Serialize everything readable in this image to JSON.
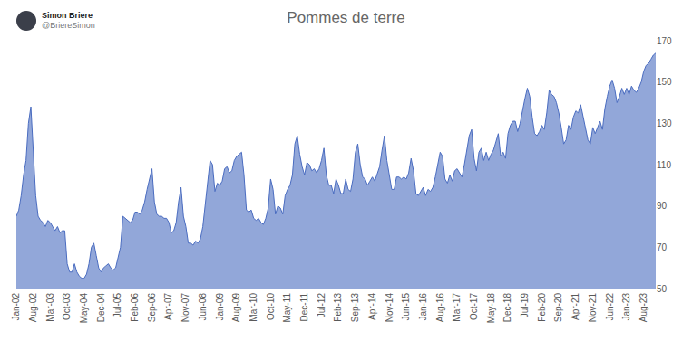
{
  "header": {
    "name": "Simon Briere",
    "handle": "@BriereSimon"
  },
  "chart_data": {
    "type": "area",
    "title": "Pommes de terre",
    "color": "#4a6cc0",
    "grid": false,
    "ylim": [
      50,
      170
    ],
    "yticks": [
      50,
      70,
      90,
      110,
      130,
      150,
      170
    ],
    "categories": [
      "Jan-02",
      null,
      null,
      null,
      null,
      null,
      null,
      "Aug-02",
      null,
      null,
      null,
      null,
      null,
      null,
      "Mar-03",
      null,
      null,
      null,
      null,
      null,
      null,
      "Oct-03",
      null,
      null,
      null,
      null,
      null,
      null,
      "May-04",
      null,
      null,
      null,
      null,
      null,
      null,
      "Dec-04",
      null,
      null,
      null,
      null,
      null,
      null,
      "Jul-05",
      null,
      null,
      null,
      null,
      null,
      null,
      "Feb-06",
      null,
      null,
      null,
      null,
      null,
      null,
      "Sep-06",
      null,
      null,
      null,
      null,
      null,
      null,
      "Apr-07",
      null,
      null,
      null,
      null,
      null,
      null,
      "Nov-07",
      null,
      null,
      null,
      null,
      null,
      null,
      "Jun-08",
      null,
      null,
      null,
      null,
      null,
      null,
      "Jan-09",
      null,
      null,
      null,
      null,
      null,
      null,
      "Aug-09",
      null,
      null,
      null,
      null,
      null,
      null,
      "Mar-10",
      null,
      null,
      null,
      null,
      null,
      null,
      "Oct-10",
      null,
      null,
      null,
      null,
      null,
      null,
      "May-11",
      null,
      null,
      null,
      null,
      null,
      null,
      "Dec-11",
      null,
      null,
      null,
      null,
      null,
      null,
      "Jul-12",
      null,
      null,
      null,
      null,
      null,
      null,
      "Feb-13",
      null,
      null,
      null,
      null,
      null,
      null,
      "Sep-13",
      null,
      null,
      null,
      null,
      null,
      null,
      "Apr-14",
      null,
      null,
      null,
      null,
      null,
      null,
      "Nov-14",
      null,
      null,
      null,
      null,
      null,
      null,
      "Jun-15",
      null,
      null,
      null,
      null,
      null,
      null,
      "Jan-16",
      null,
      null,
      null,
      null,
      null,
      null,
      "Aug-16",
      null,
      null,
      null,
      null,
      null,
      null,
      "Mar-17",
      null,
      null,
      null,
      null,
      null,
      null,
      "Oct-17",
      null,
      null,
      null,
      null,
      null,
      null,
      "May-18",
      null,
      null,
      null,
      null,
      null,
      null,
      "Dec-18",
      null,
      null,
      null,
      null,
      null,
      null,
      "Jul-19",
      null,
      null,
      null,
      null,
      null,
      null,
      "Feb-20",
      null,
      null,
      null,
      null,
      null,
      null,
      "Sep-20",
      null,
      null,
      null,
      null,
      null,
      null,
      "Apr-21",
      null,
      null,
      null,
      null,
      null,
      null,
      "Nov-21",
      null,
      null,
      null,
      null,
      null,
      null,
      "Jun-22",
      null,
      null,
      null,
      null,
      null,
      null,
      "Jan-23",
      null,
      null,
      null,
      null,
      null,
      null,
      "Aug-23",
      null,
      null,
      null,
      null,
      null
    ],
    "values": [
      85,
      88,
      95,
      105,
      112,
      130,
      138,
      115,
      95,
      85,
      83,
      82,
      80,
      83,
      82,
      80,
      78,
      80,
      77,
      78,
      78,
      62,
      58,
      58,
      62,
      58,
      56,
      55,
      55,
      57,
      62,
      70,
      72,
      66,
      60,
      58,
      60,
      61,
      62,
      60,
      59,
      60,
      65,
      70,
      85,
      84,
      83,
      82,
      83,
      87,
      87,
      86,
      88,
      92,
      98,
      103,
      108,
      92,
      86,
      85,
      85,
      84,
      84,
      82,
      77,
      78,
      82,
      92,
      99,
      85,
      80,
      72,
      72,
      71,
      73,
      72,
      74,
      80,
      90,
      100,
      112,
      110,
      97,
      101,
      100,
      102,
      108,
      109,
      106,
      107,
      112,
      114,
      115,
      116,
      105,
      88,
      87,
      88,
      84,
      83,
      84,
      82,
      81,
      84,
      89,
      103,
      98,
      86,
      90,
      89,
      86,
      95,
      98,
      100,
      105,
      120,
      124,
      115,
      109,
      105,
      111,
      110,
      107,
      108,
      106,
      108,
      112,
      118,
      105,
      100,
      100,
      96,
      103,
      100,
      96,
      96,
      103,
      98,
      97,
      103,
      116,
      120,
      110,
      104,
      103,
      100,
      102,
      104,
      102,
      106,
      109,
      117,
      124,
      112,
      105,
      98,
      98,
      104,
      104,
      103,
      104,
      103,
      106,
      113,
      107,
      96,
      95,
      97,
      99,
      95,
      98,
      97,
      99,
      104,
      110,
      116,
      114,
      103,
      101,
      105,
      102,
      107,
      108,
      106,
      104,
      110,
      118,
      124,
      127,
      113,
      107,
      116,
      118,
      112,
      116,
      112,
      115,
      117,
      121,
      125,
      114,
      116,
      113,
      125,
      129,
      131,
      131,
      126,
      130,
      137,
      142,
      147,
      143,
      133,
      125,
      124,
      126,
      129,
      127,
      135,
      146,
      144,
      143,
      140,
      135,
      128,
      120,
      122,
      129,
      127,
      133,
      136,
      135,
      139,
      133,
      128,
      122,
      120,
      128,
      125,
      128,
      131,
      127,
      137,
      143,
      148,
      151,
      147,
      140,
      143,
      147,
      144,
      147,
      144,
      148,
      146,
      145,
      147,
      150,
      155,
      158,
      159,
      161,
      163,
      164
    ]
  }
}
